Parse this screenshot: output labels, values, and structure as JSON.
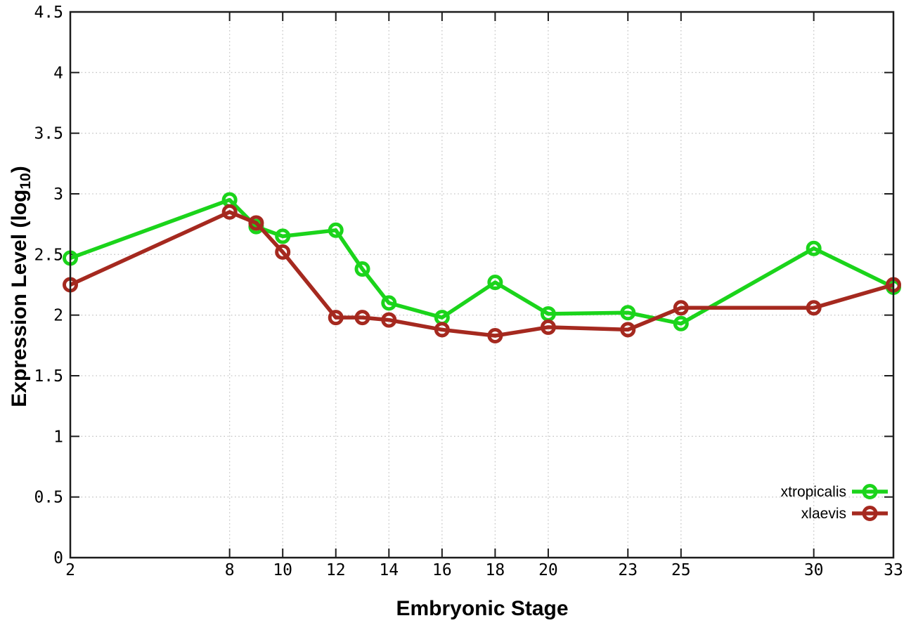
{
  "chart_data": {
    "type": "line",
    "title": "",
    "xlabel": "Embryonic Stage",
    "ylabel": "Expression Level (log10)",
    "ylabel_parts": {
      "main": "Expression Level (log",
      "sub": "10",
      "end": ")"
    },
    "xlim": [
      2,
      33
    ],
    "ylim": [
      0,
      4.5
    ],
    "x_ticks": [
      2,
      8,
      10,
      12,
      14,
      16,
      18,
      20,
      23,
      25,
      30,
      33
    ],
    "y_ticks": [
      0,
      0.5,
      1,
      1.5,
      2,
      2.5,
      3,
      3.5,
      4,
      4.5
    ],
    "grid": true,
    "legend_position": "inside-bottom-right",
    "x": [
      2,
      8,
      9,
      10,
      12,
      13,
      14,
      16,
      18,
      20,
      23,
      25,
      30,
      33
    ],
    "series": [
      {
        "name": "xtropicalis",
        "color": "#1bd41b",
        "marker": "open-circle",
        "values": [
          2.47,
          2.95,
          2.73,
          2.65,
          2.7,
          2.38,
          2.1,
          1.98,
          2.27,
          2.01,
          2.02,
          1.93,
          2.55,
          2.23
        ]
      },
      {
        "name": "xlaevis",
        "color": "#a5291f",
        "marker": "open-circle",
        "values": [
          2.25,
          2.85,
          2.76,
          2.52,
          1.98,
          1.98,
          1.96,
          1.88,
          1.83,
          1.9,
          1.88,
          2.06,
          2.06,
          2.25
        ]
      }
    ],
    "style": {
      "background": "#ffffff",
      "grid_color": "#c6c6c6",
      "border_color": "#1c1c1c",
      "text_color": "#000000"
    }
  }
}
